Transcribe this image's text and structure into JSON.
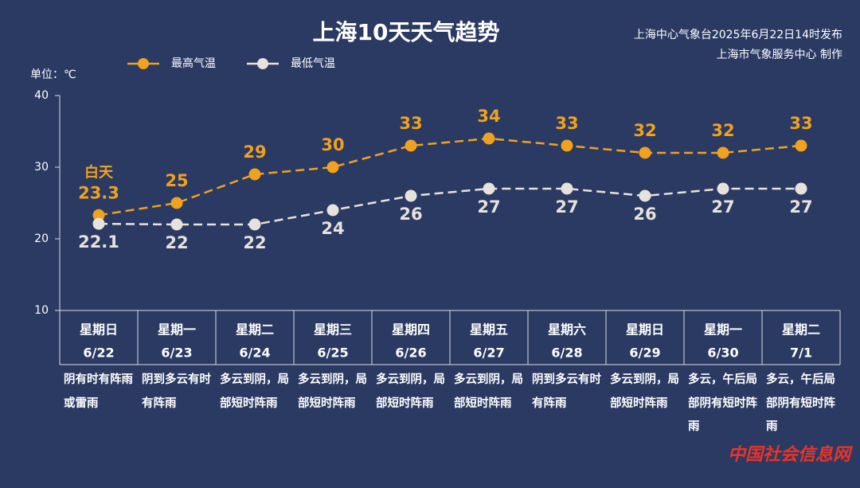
{
  "chart_data": {
    "type": "line",
    "title": "上海10天天气趋势",
    "issuer": "上海中心气象台2025年6月22日14时发布",
    "producer": "上海市气象服务中心 制作",
    "y_label": "单位：℃",
    "watermark": "中国社会信息网",
    "annotation": "白天",
    "categories": [
      "星期日",
      "星期一",
      "星期二",
      "星期三",
      "星期四",
      "星期五",
      "星期六",
      "星期日",
      "星期一",
      "星期二"
    ],
    "dates": [
      "6/22",
      "6/23",
      "6/24",
      "6/25",
      "6/26",
      "6/27",
      "6/28",
      "6/29",
      "6/30",
      "7/1"
    ],
    "descriptions": [
      "阴有时有阵雨或雷雨",
      "阴到多云有时有阵雨",
      "多云到阴，局部短时阵雨",
      "多云到阴，局部短时阵雨",
      "多云到阴，局部短时阵雨",
      "多云到阴，局部短时阵雨",
      "阴到多云有时有阵雨",
      "多云到阴，局部短时阵雨",
      "多云，午后局部阴有短时阵雨",
      "多云，午后局部阴有短时阵雨"
    ],
    "series": [
      {
        "name": "最高气温",
        "color": "#f0a21f",
        "values": [
          23.3,
          25,
          29,
          30,
          33,
          34,
          33,
          32,
          32,
          33
        ]
      },
      {
        "name": "最低气温",
        "color": "#e8e2dc",
        "values": [
          22.1,
          22,
          22,
          24,
          26,
          27,
          27,
          26,
          27,
          27
        ]
      }
    ],
    "ylim": [
      10,
      40
    ],
    "yticks": [
      10,
      20,
      30,
      40
    ],
    "grid": false
  }
}
